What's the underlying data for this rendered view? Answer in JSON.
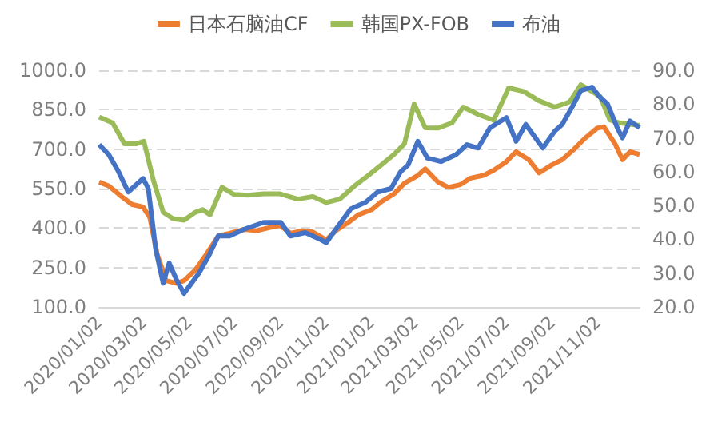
{
  "chart_data": {
    "type": "line",
    "marker": "none",
    "line_style": "solid",
    "legend": "top",
    "grid": "y",
    "xlim": [
      "2020-01-02",
      "2021-12-28"
    ],
    "xticks": [
      {
        "value": "2020-01-02",
        "label": "2020/01/02"
      },
      {
        "value": "2020-03-02",
        "label": "2020/03/02"
      },
      {
        "value": "2020-05-02",
        "label": "2020/05/02"
      },
      {
        "value": "2020-07-02",
        "label": "2020/07/02"
      },
      {
        "value": "2020-09-02",
        "label": "2020/09/02"
      },
      {
        "value": "2020-11-02",
        "label": "2020/11/02"
      },
      {
        "value": "2021-01-02",
        "label": "2021/01/02"
      },
      {
        "value": "2021-03-02",
        "label": "2021/03/02"
      },
      {
        "value": "2021-05-02",
        "label": "2021/05/02"
      },
      {
        "value": "2021-07-02",
        "label": "2021/07/02"
      },
      {
        "value": "2021-09-02",
        "label": "2021/09/02"
      },
      {
        "value": "2021-11-02",
        "label": "2021/11/02"
      }
    ],
    "ylim": [
      100,
      1000
    ],
    "yticks": [
      {
        "value": 100,
        "label": "100.0"
      },
      {
        "value": 250,
        "label": "250.0"
      },
      {
        "value": 400,
        "label": "400.0"
      },
      {
        "value": 550,
        "label": "550.0"
      },
      {
        "value": 700,
        "label": "700.0"
      },
      {
        "value": 850,
        "label": "850.0"
      },
      {
        "value": 1000,
        "label": "1000.0"
      }
    ],
    "y2lim": [
      20,
      90
    ],
    "y2ticks": [
      {
        "value": 20,
        "label": "20.0"
      },
      {
        "value": 30,
        "label": "30.0"
      },
      {
        "value": 40,
        "label": "40.0"
      },
      {
        "value": 50,
        "label": "50.0"
      },
      {
        "value": 60,
        "label": "60.0"
      },
      {
        "value": 70,
        "label": "70.0"
      },
      {
        "value": 80,
        "label": "80.0"
      },
      {
        "value": 90,
        "label": "90.0"
      }
    ],
    "series": [
      {
        "name": "日本石脑油CF",
        "color": "#ed7d31",
        "x": [
          "2020-01-02",
          "2020-01-15",
          "2020-02-01",
          "2020-02-15",
          "2020-03-01",
          "2020-03-10",
          "2020-03-20",
          "2020-04-01",
          "2020-04-15",
          "2020-04-25",
          "2020-05-10",
          "2020-05-25",
          "2020-06-10",
          "2020-06-25",
          "2020-07-15",
          "2020-08-01",
          "2020-08-15",
          "2020-09-01",
          "2020-09-15",
          "2020-10-01",
          "2020-10-15",
          "2020-11-02",
          "2020-11-15",
          "2020-12-01",
          "2020-12-15",
          "2021-01-02",
          "2021-01-15",
          "2021-02-01",
          "2021-02-15",
          "2021-03-05",
          "2021-03-15",
          "2021-04-01",
          "2021-04-15",
          "2021-05-01",
          "2021-05-15",
          "2021-06-01",
          "2021-06-15",
          "2021-07-01",
          "2021-07-15",
          "2021-08-01",
          "2021-08-15",
          "2021-09-01",
          "2021-09-15",
          "2021-10-01",
          "2021-10-15",
          "2021-11-01",
          "2021-11-10",
          "2021-11-25",
          "2021-12-05",
          "2021-12-15",
          "2021-12-28"
        ],
        "values": [
          575,
          560,
          520,
          490,
          480,
          440,
          300,
          200,
          190,
          200,
          240,
          300,
          370,
          380,
          395,
          390,
          400,
          410,
          380,
          390,
          385,
          355,
          390,
          420,
          450,
          470,
          500,
          530,
          570,
          600,
          625,
          575,
          555,
          565,
          590,
          600,
          620,
          650,
          690,
          660,
          610,
          640,
          660,
          700,
          740,
          780,
          785,
          720,
          660,
          690,
          680
        ]
      },
      {
        "name": "韩国PX-FOB",
        "color": "#9bbb59",
        "x": [
          "2020-01-02",
          "2020-01-20",
          "2020-02-05",
          "2020-02-20",
          "2020-03-02",
          "2020-03-15",
          "2020-03-28",
          "2020-04-10",
          "2020-04-25",
          "2020-05-10",
          "2020-05-20",
          "2020-05-30",
          "2020-06-15",
          "2020-07-01",
          "2020-07-20",
          "2020-08-10",
          "2020-09-01",
          "2020-09-25",
          "2020-10-15",
          "2020-11-02",
          "2020-11-20",
          "2020-12-10",
          "2020-12-28",
          "2021-01-15",
          "2021-02-01",
          "2021-02-15",
          "2021-02-28",
          "2021-03-15",
          "2021-04-01",
          "2021-04-20",
          "2021-05-05",
          "2021-05-25",
          "2021-06-15",
          "2021-07-05",
          "2021-07-25",
          "2021-08-15",
          "2021-09-05",
          "2021-09-25",
          "2021-10-10",
          "2021-10-25",
          "2021-11-05",
          "2021-11-18",
          "2021-12-01",
          "2021-12-15",
          "2021-12-28"
        ],
        "values": [
          822,
          800,
          720,
          720,
          730,
          580,
          460,
          436,
          430,
          460,
          470,
          450,
          555,
          528,
          525,
          530,
          530,
          510,
          520,
          497,
          510,
          560,
          599,
          640,
          680,
          720,
          872,
          781,
          780,
          800,
          860,
          832,
          810,
          933,
          920,
          884,
          860,
          880,
          945,
          920,
          900,
          811,
          800,
          795,
          790
        ]
      },
      {
        "name": "布油",
        "color": "#4472c4",
        "axis": "y2",
        "x": [
          "2020-01-02",
          "2020-01-15",
          "2020-01-28",
          "2020-02-10",
          "2020-03-01",
          "2020-03-08",
          "2020-03-18",
          "2020-03-28",
          "2020-04-05",
          "2020-04-15",
          "2020-04-25",
          "2020-05-05",
          "2020-05-15",
          "2020-05-28",
          "2020-06-10",
          "2020-06-25",
          "2020-07-15",
          "2020-08-10",
          "2020-09-02",
          "2020-09-15",
          "2020-10-05",
          "2020-10-25",
          "2020-11-02",
          "2020-11-15",
          "2020-12-05",
          "2020-12-25",
          "2021-01-10",
          "2021-01-28",
          "2021-02-10",
          "2021-02-20",
          "2021-03-05",
          "2021-03-18",
          "2021-04-05",
          "2021-04-25",
          "2021-05-10",
          "2021-05-25",
          "2021-06-10",
          "2021-07-02",
          "2021-07-15",
          "2021-07-28",
          "2021-08-10",
          "2021-08-20",
          "2021-09-05",
          "2021-09-15",
          "2021-09-28",
          "2021-10-10",
          "2021-10-25",
          "2021-11-05",
          "2021-11-15",
          "2021-11-28",
          "2021-12-05",
          "2021-12-15",
          "2021-12-28"
        ],
        "values": [
          68,
          65,
          60,
          54,
          58,
          55,
          37,
          27,
          33,
          28,
          24,
          27,
          30,
          35,
          41,
          41,
          43,
          45,
          45,
          41,
          42,
          40,
          39,
          43,
          49,
          51,
          54,
          55,
          60,
          62,
          69,
          64,
          63,
          65,
          68,
          67,
          73,
          76,
          69,
          74,
          70,
          67,
          72,
          74,
          79,
          84,
          85,
          82,
          80,
          73,
          70,
          75,
          73
        ]
      }
    ]
  }
}
